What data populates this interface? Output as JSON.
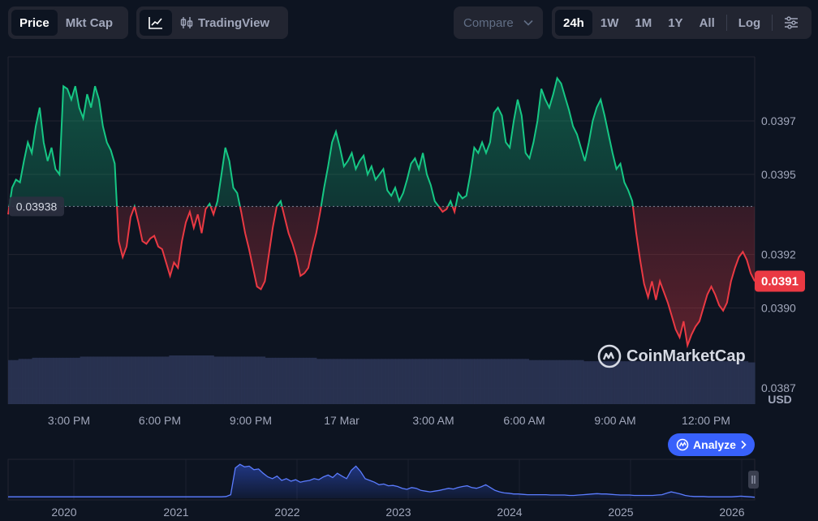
{
  "toolbar": {
    "type_tabs": [
      {
        "label": "Price",
        "active": true
      },
      {
        "label": "Mkt Cap",
        "active": false
      }
    ],
    "view": {
      "tradingview_label": "TradingView"
    },
    "compare_label": "Compare",
    "ranges": [
      {
        "label": "24h",
        "active": true
      },
      {
        "label": "1W",
        "active": false
      },
      {
        "label": "1M",
        "active": false
      },
      {
        "label": "1Y",
        "active": false
      },
      {
        "label": "All",
        "active": false
      }
    ],
    "log_label": "Log"
  },
  "chart_data": {
    "type": "line",
    "x_labels": [
      "3:00 PM",
      "6:00 PM",
      "9:00 PM",
      "17 Mar",
      "3:00 AM",
      "6:00 AM",
      "9:00 AM",
      "12:00 PM"
    ],
    "y_ticks": [
      "0.0397",
      "0.0395",
      "0.0392",
      "0.0390",
      "0.0387"
    ],
    "y_unit": "USD",
    "ylim": [
      0.03864,
      0.03994
    ],
    "open_price": 0.03938,
    "open_label": "0.03938",
    "current_label": "0.0391",
    "up_color": "#16c784",
    "down_color": "#ea3943",
    "price": [
      0.03935,
      0.03945,
      0.03948,
      0.03947,
      0.03955,
      0.03962,
      0.03958,
      0.03968,
      0.03975,
      0.03962,
      0.03955,
      0.0396,
      0.03952,
      0.0395,
      0.03983,
      0.03982,
      0.03978,
      0.03983,
      0.03975,
      0.03971,
      0.0398,
      0.03975,
      0.03983,
      0.03978,
      0.03968,
      0.03962,
      0.03959,
      0.03954,
      0.03925,
      0.03919,
      0.03923,
      0.03934,
      0.03938,
      0.03932,
      0.03925,
      0.03924,
      0.03926,
      0.03927,
      0.03923,
      0.03922,
      0.03917,
      0.03912,
      0.03917,
      0.03915,
      0.03925,
      0.03932,
      0.03936,
      0.0393,
      0.03935,
      0.03928,
      0.03937,
      0.03939,
      0.03935,
      0.0394,
      0.0395,
      0.0396,
      0.03955,
      0.03945,
      0.03943,
      0.03936,
      0.03928,
      0.03922,
      0.03915,
      0.03908,
      0.03907,
      0.0391,
      0.0392,
      0.0393,
      0.03938,
      0.0394,
      0.03934,
      0.03928,
      0.03924,
      0.03919,
      0.03912,
      0.03913,
      0.03915,
      0.03922,
      0.03928,
      0.03936,
      0.03945,
      0.03953,
      0.03962,
      0.03966,
      0.0396,
      0.03953,
      0.03955,
      0.03958,
      0.03952,
      0.03955,
      0.03957,
      0.0395,
      0.03953,
      0.03948,
      0.0395,
      0.03952,
      0.03944,
      0.03942,
      0.03945,
      0.0394,
      0.03943,
      0.03948,
      0.03954,
      0.03956,
      0.03952,
      0.03958,
      0.0395,
      0.03946,
      0.0394,
      0.03938,
      0.03936,
      0.03937,
      0.0394,
      0.03936,
      0.03943,
      0.03941,
      0.03942,
      0.0395,
      0.0396,
      0.03958,
      0.03962,
      0.03958,
      0.03962,
      0.03973,
      0.03975,
      0.03972,
      0.03962,
      0.0396,
      0.0397,
      0.03978,
      0.03972,
      0.03958,
      0.03956,
      0.03962,
      0.0397,
      0.03982,
      0.03978,
      0.03975,
      0.0398,
      0.03986,
      0.03984,
      0.03979,
      0.03974,
      0.03968,
      0.03965,
      0.0396,
      0.03955,
      0.03962,
      0.0397,
      0.03975,
      0.03978,
      0.03972,
      0.03965,
      0.03958,
      0.03952,
      0.03954,
      0.03947,
      0.03944,
      0.0394,
      0.03928,
      0.03918,
      0.03909,
      0.03904,
      0.0391,
      0.03903,
      0.0391,
      0.03906,
      0.03902,
      0.03897,
      0.03892,
      0.03889,
      0.03895,
      0.03886,
      0.0389,
      0.03893,
      0.03895,
      0.039,
      0.03905,
      0.03908,
      0.03905,
      0.03901,
      0.03899,
      0.03902,
      0.0391,
      0.03915,
      0.03919,
      0.03921,
      0.03918,
      0.03913,
      0.0391
    ],
    "volume": [
      0.38,
      0.38,
      0.38,
      0.39,
      0.39,
      0.39,
      0.39,
      0.4,
      0.4,
      0.4,
      0.4,
      0.4,
      0.4,
      0.4,
      0.4,
      0.4,
      0.4,
      0.4,
      0.4,
      0.4,
      0.4,
      0.41,
      0.41,
      0.41,
      0.41,
      0.41,
      0.41,
      0.41,
      0.41,
      0.41,
      0.41,
      0.41,
      0.41,
      0.41,
      0.41,
      0.41,
      0.41,
      0.41,
      0.41,
      0.41,
      0.41,
      0.41,
      0.41,
      0.41,
      0.41,
      0.41,
      0.41,
      0.42,
      0.42,
      0.42,
      0.42,
      0.42,
      0.42,
      0.42,
      0.42,
      0.42,
      0.42,
      0.42,
      0.42,
      0.42,
      0.41,
      0.41,
      0.41,
      0.41,
      0.41,
      0.41,
      0.41,
      0.41,
      0.41,
      0.41,
      0.41,
      0.41,
      0.41,
      0.41,
      0.41,
      0.4,
      0.4,
      0.4,
      0.4,
      0.4,
      0.4,
      0.4,
      0.4,
      0.4,
      0.4,
      0.4,
      0.4,
      0.4,
      0.4,
      0.4,
      0.39,
      0.39,
      0.39,
      0.39,
      0.39,
      0.39,
      0.39,
      0.39,
      0.39,
      0.39,
      0.39,
      0.39,
      0.39,
      0.39,
      0.39,
      0.39,
      0.39,
      0.39,
      0.39,
      0.39,
      0.39,
      0.39,
      0.39,
      0.39,
      0.39,
      0.39,
      0.39,
      0.39,
      0.39,
      0.39,
      0.39,
      0.39,
      0.39,
      0.39,
      0.39,
      0.39,
      0.39,
      0.39,
      0.39,
      0.39,
      0.39,
      0.39,
      0.39,
      0.39,
      0.39,
      0.39,
      0.39,
      0.39,
      0.39,
      0.39,
      0.39,
      0.39,
      0.39,
      0.39,
      0.39,
      0.39,
      0.39,
      0.39,
      0.39,
      0.39,
      0.39,
      0.39,
      0.38,
      0.38,
      0.38,
      0.38,
      0.38,
      0.38,
      0.38,
      0.38,
      0.38,
      0.38,
      0.38,
      0.38,
      0.38,
      0.38,
      0.38,
      0.38,
      0.37,
      0.37,
      0.37,
      0.37,
      0.37,
      0.37,
      0.37,
      0.37,
      0.37,
      0.37,
      0.37,
      0.37,
      0.37,
      0.37,
      0.37,
      0.37,
      0.37,
      0.37,
      0.37,
      0.37,
      0.37,
      0.37,
      0.37,
      0.37,
      0.37,
      0.37,
      0.37,
      0.37,
      0.37,
      0.37,
      0.37,
      0.37,
      0.37,
      0.37,
      0.37,
      0.37,
      0.37,
      0.37,
      0.37,
      0.37,
      0.37,
      0.37,
      0.37,
      0.37,
      0.37,
      0.37,
      0.37,
      0.37,
      0.36,
      0.36
    ],
    "navigator": {
      "x_labels": [
        "2020",
        "2021",
        "2022",
        "2023",
        "2024",
        "2025",
        "2026"
      ],
      "values": [
        0.04,
        0.04,
        0.04,
        0.04,
        0.04,
        0.04,
        0.04,
        0.04,
        0.04,
        0.04,
        0.04,
        0.04,
        0.04,
        0.04,
        0.04,
        0.04,
        0.04,
        0.04,
        0.04,
        0.04,
        0.04,
        0.04,
        0.04,
        0.04,
        0.04,
        0.04,
        0.04,
        0.04,
        0.04,
        0.04,
        0.04,
        0.04,
        0.04,
        0.04,
        0.04,
        0.04,
        0.04,
        0.04,
        0.04,
        0.04,
        0.04,
        0.04,
        0.04,
        0.04,
        0.04,
        0.04,
        0.04,
        0.05,
        0.1,
        0.85,
        0.95,
        0.88,
        0.9,
        0.8,
        0.82,
        0.7,
        0.6,
        0.55,
        0.62,
        0.5,
        0.55,
        0.48,
        0.52,
        0.45,
        0.48,
        0.5,
        0.55,
        0.52,
        0.6,
        0.65,
        0.58,
        0.7,
        0.62,
        0.55,
        0.78,
        0.9,
        0.75,
        0.55,
        0.5,
        0.45,
        0.38,
        0.4,
        0.35,
        0.36,
        0.33,
        0.28,
        0.25,
        0.3,
        0.28,
        0.22,
        0.2,
        0.18,
        0.2,
        0.22,
        0.25,
        0.28,
        0.26,
        0.3,
        0.33,
        0.35,
        0.3,
        0.28,
        0.32,
        0.38,
        0.3,
        0.22,
        0.18,
        0.15,
        0.14,
        0.12,
        0.12,
        0.11,
        0.1,
        0.1,
        0.1,
        0.1,
        0.1,
        0.09,
        0.09,
        0.09,
        0.09,
        0.08,
        0.08,
        0.09,
        0.1,
        0.11,
        0.12,
        0.13,
        0.12,
        0.12,
        0.11,
        0.1,
        0.09,
        0.09,
        0.09,
        0.08,
        0.08,
        0.08,
        0.08,
        0.08,
        0.09,
        0.1,
        0.14,
        0.18,
        0.15,
        0.12,
        0.08,
        0.06,
        0.05,
        0.05,
        0.05,
        0.04,
        0.04,
        0.04,
        0.04,
        0.04,
        0.04,
        0.05,
        0.06,
        0.05,
        0.04,
        0.03
      ]
    }
  },
  "watermark": "CoinMarketCap",
  "analyze_label": "Analyze"
}
